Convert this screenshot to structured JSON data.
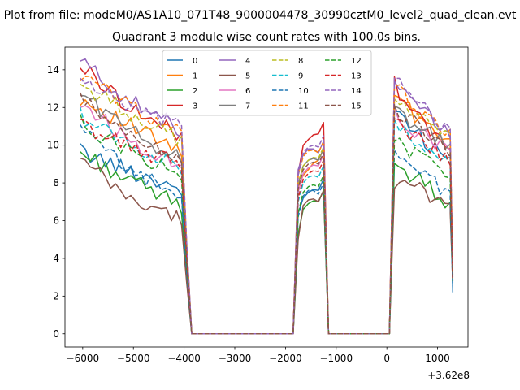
{
  "figure": {
    "suptitle": "Plot from file: modeM0/AS1A10_071T48_9000004478_30990cztM0_level2_quad_clean.evt",
    "background": "#ffffff"
  },
  "chart_data": {
    "type": "line",
    "title": "Quadrant 3 module wise count rates with 100.0s bins.",
    "xlabel": "",
    "ylabel": "",
    "x_offset_label": "+3.62e8",
    "xlim": [
      -6350,
      1600
    ],
    "ylim": [
      -0.7,
      15.2
    ],
    "xticks": [
      -6000,
      -5000,
      -4000,
      -3000,
      -2000,
      -1000,
      0,
      1000
    ],
    "xtick_labels": [
      "−6000",
      "−5000",
      "−4000",
      "−3000",
      "−2000",
      "−1000",
      "0",
      "1000"
    ],
    "yticks": [
      0,
      2,
      4,
      6,
      8,
      10,
      12,
      14
    ],
    "ytick_labels": [
      "0",
      "2",
      "4",
      "6",
      "8",
      "10",
      "12",
      "14"
    ],
    "grid": false,
    "legend": {
      "position": "top-center",
      "ncol": 4
    },
    "segments": [
      {
        "start": -6050,
        "n": 21,
        "step": 100,
        "drop": [
          [
            -3950,
            "v"
          ],
          [
            -3850,
            0
          ]
        ]
      },
      {
        "start": -3850,
        "n": 21,
        "step": 100,
        "zero": true
      },
      {
        "start": -1750,
        "n": 6,
        "step": 100,
        "rise": true
      },
      {
        "start": -1150,
        "n": 12,
        "step": 100,
        "zero": true
      },
      {
        "start": 50,
        "n": 13,
        "step": 100,
        "rise": true
      }
    ],
    "series": [
      {
        "name": "0",
        "color": "#1f77b4",
        "dash": false,
        "a": [
          9.7,
          8.6,
          7.7
        ],
        "b": [
          6.4,
          7.5,
          8.2
        ],
        "c": [
          12.1,
          10.3,
          9.2,
          2.2
        ]
      },
      {
        "name": "1",
        "color": "#ff7f0e",
        "dash": false,
        "a": [
          12.5,
          11.0,
          9.6
        ],
        "b": [
          7.8,
          8.7,
          9.8
        ],
        "c": [
          12.8,
          11.2,
          9.9,
          2.8
        ]
      },
      {
        "name": "2",
        "color": "#2ca02c",
        "dash": false,
        "a": [
          9.6,
          8.1,
          6.8
        ],
        "b": [
          5.3,
          6.9,
          7.6
        ],
        "c": [
          9.0,
          8.0,
          6.9,
          3.1
        ]
      },
      {
        "name": "3",
        "color": "#d62728",
        "dash": false,
        "a": [
          14.2,
          12.0,
          10.4
        ],
        "b": [
          8.5,
          10.3,
          11.2
        ],
        "c": [
          13.2,
          11.2,
          9.8,
          3.3
        ]
      },
      {
        "name": "4",
        "color": "#9467bd",
        "dash": false,
        "a": [
          14.5,
          12.3,
          10.8
        ],
        "b": [
          8.7,
          9.8,
          10.2
        ],
        "c": [
          13.1,
          11.8,
          10.5,
          3.0
        ]
      },
      {
        "name": "5",
        "color": "#8c564b",
        "dash": false,
        "a": [
          9.2,
          7.1,
          6.1
        ],
        "b": [
          5.0,
          7.1,
          7.6
        ],
        "c": [
          8.0,
          7.6,
          6.6,
          2.7
        ]
      },
      {
        "name": "6",
        "color": "#e377c2",
        "dash": false,
        "a": [
          12.3,
          10.2,
          9.0
        ],
        "b": [
          7.5,
          8.8,
          9.5
        ],
        "c": [
          11.5,
          10.6,
          9.6,
          3.0
        ]
      },
      {
        "name": "7",
        "color": "#7f7f7f",
        "dash": false,
        "a": [
          12.8,
          10.7,
          9.3
        ],
        "b": [
          7.9,
          9.2,
          9.8
        ],
        "c": [
          11.8,
          10.9,
          9.8,
          3.1
        ]
      },
      {
        "name": "8",
        "color": "#bcbd22",
        "dash": true,
        "a": [
          13.2,
          11.7,
          10.2
        ],
        "b": [
          8.0,
          9.2,
          9.9
        ],
        "c": [
          12.5,
          11.4,
          10.3,
          3.2
        ]
      },
      {
        "name": "9",
        "color": "#17becf",
        "dash": true,
        "a": [
          11.6,
          10.0,
          8.8
        ],
        "b": [
          7.0,
          8.3,
          8.9
        ],
        "c": [
          11.0,
          9.9,
          9.0,
          2.9
        ]
      },
      {
        "name": "10",
        "color": "#1f77b4",
        "dash": true,
        "a": [
          10.8,
          8.6,
          7.4
        ],
        "b": [
          6.2,
          7.6,
          8.0
        ],
        "c": [
          9.8,
          8.4,
          7.3,
          2.4
        ]
      },
      {
        "name": "11",
        "color": "#ff7f0e",
        "dash": true,
        "a": [
          13.7,
          12.1,
          10.6
        ],
        "b": [
          8.4,
          9.7,
          10.2
        ],
        "c": [
          13.0,
          11.7,
          10.6,
          3.3
        ]
      },
      {
        "name": "12",
        "color": "#2ca02c",
        "dash": true,
        "a": [
          11.2,
          9.6,
          8.4
        ],
        "b": [
          6.4,
          7.8,
          8.4
        ],
        "c": [
          10.4,
          9.2,
          8.2,
          2.8
        ]
      },
      {
        "name": "13",
        "color": "#d62728",
        "dash": true,
        "a": [
          11.1,
          9.9,
          8.9
        ],
        "b": [
          7.2,
          8.5,
          9.2
        ],
        "c": [
          11.2,
          10.1,
          9.2,
          2.9
        ]
      },
      {
        "name": "14",
        "color": "#9467bd",
        "dash": true,
        "a": [
          13.6,
          11.8,
          10.9
        ],
        "b": [
          8.4,
          9.9,
          10.5
        ],
        "c": [
          13.5,
          12.0,
          10.8,
          3.4
        ]
      },
      {
        "name": "15",
        "color": "#8c564b",
        "dash": true,
        "a": [
          12.4,
          10.5,
          9.3
        ],
        "b": [
          7.7,
          9.0,
          9.6
        ],
        "c": [
          12.0,
          10.8,
          9.8,
          3.1
        ]
      }
    ]
  }
}
